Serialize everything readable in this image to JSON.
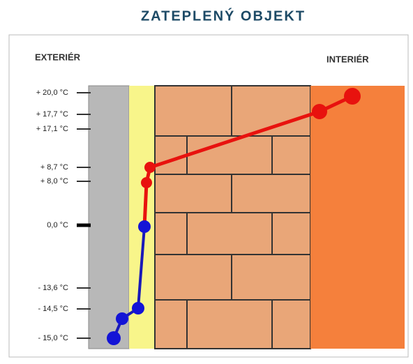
{
  "title": "ZATEPLENÝ OBJEKT",
  "exterior_label": "EXTERIÉR",
  "interior_label": "INTERIÉR",
  "temperature_labels": [
    "+ 20,0 °C",
    "+ 17,7 °C",
    "+ 17,1 °C",
    "+ 8,7 °C",
    "+ 8,0 °C",
    "0,0 °C",
    "- 13,6 °C",
    "- 14,5 °C",
    "- 15,0 °C"
  ]
}
